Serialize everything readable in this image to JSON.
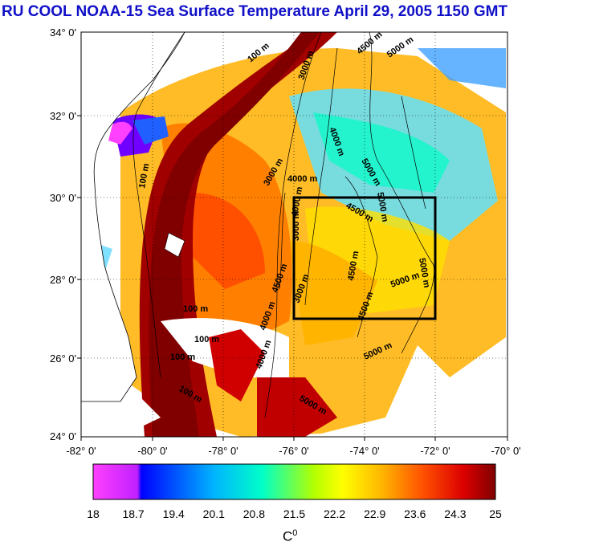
{
  "title": "RU COOL  NOAA-15 Sea Surface Temperature April 29, 2005 1150 GMT",
  "lat_ticks": [
    "34° 0'",
    "32° 0'",
    "30° 0'",
    "28° 0'",
    "26° 0'",
    "24° 0'"
  ],
  "lon_ticks": [
    "-82° 0'",
    "-80° 0'",
    "-78° 0'",
    "-76° 0'",
    "-74° 0'",
    "-72° 0'",
    "-70° 0'"
  ],
  "colorbar": {
    "labels": [
      "18",
      "18.7",
      "19.4",
      "20.1",
      "20.8",
      "21.5",
      "22.2",
      "22.9",
      "23.6",
      "24.3",
      "25"
    ],
    "unit_base": "C",
    "unit_sup": "0",
    "colors": [
      "#ff40ff",
      "#0000ff",
      "#00b4ff",
      "#00ffc8",
      "#b4ff00",
      "#ffff00",
      "#ffb400",
      "#ff5000",
      "#dc0000",
      "#800000"
    ]
  },
  "contours": [
    "100 m",
    "100 m",
    "3000 m",
    "4000 m",
    "4500 m",
    "5000 m",
    "3000 m",
    "4000 m",
    "5000 m",
    "4000 m",
    "3000 m",
    "4500 m",
    "5000 m",
    "4500 m",
    "5000 m",
    "5000 m",
    "4500 m",
    "4500 m",
    "5000 m",
    "100 m",
    "100 m",
    "100 m",
    "100 m",
    "4000 m",
    "5000 m",
    "4000 m",
    "3000 m"
  ],
  "study_box": {
    "lon": [
      -76,
      -72
    ],
    "lat": [
      27,
      30
    ]
  }
}
